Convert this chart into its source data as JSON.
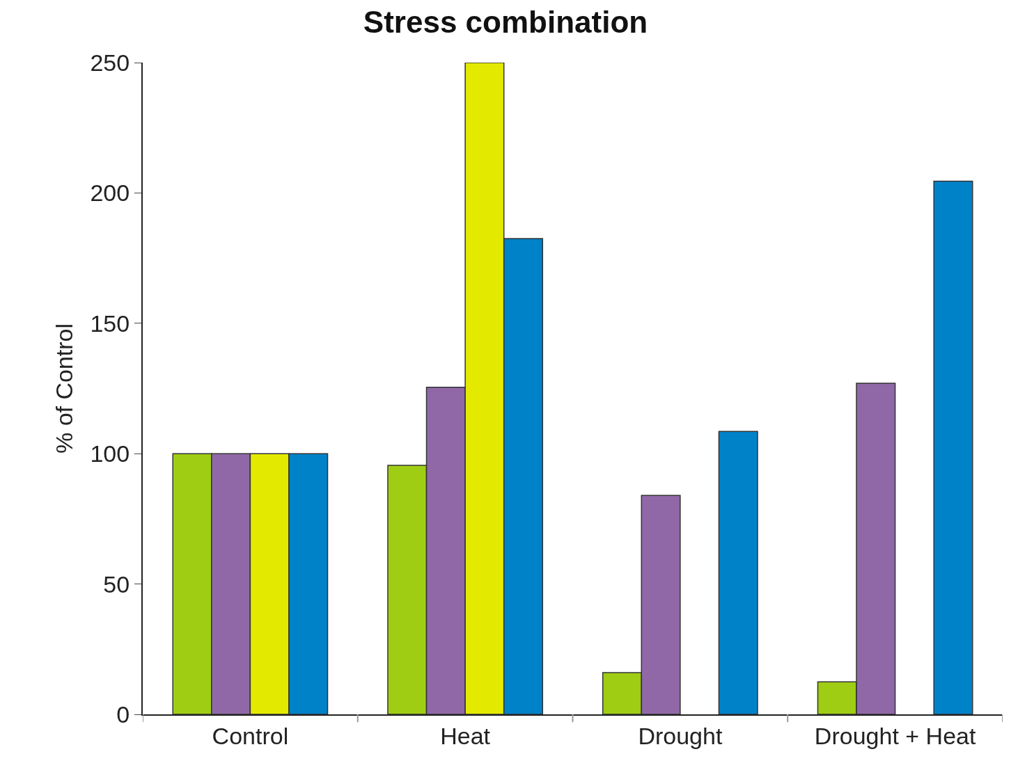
{
  "chart_data": {
    "type": "bar",
    "title": "Stress combination",
    "ylabel": "% of Control",
    "categories": [
      "Control",
      "Heat",
      "Drought",
      "Drought + Heat"
    ],
    "series": [
      {
        "color": "#9fcd14",
        "values": [
          100,
          95.5,
          16,
          12.5
        ]
      },
      {
        "color": "#9068a8",
        "values": [
          100,
          125.5,
          84,
          127
        ]
      },
      {
        "color": "#e3ea00",
        "values": [
          100,
          250,
          null,
          null
        ]
      },
      {
        "color": "#0082c8",
        "values": [
          100,
          182.5,
          108.5,
          204.5
        ]
      }
    ],
    "ylim": [
      0,
      250
    ],
    "yticks": [
      0,
      50,
      100,
      150,
      200,
      250
    ],
    "legend": false
  }
}
